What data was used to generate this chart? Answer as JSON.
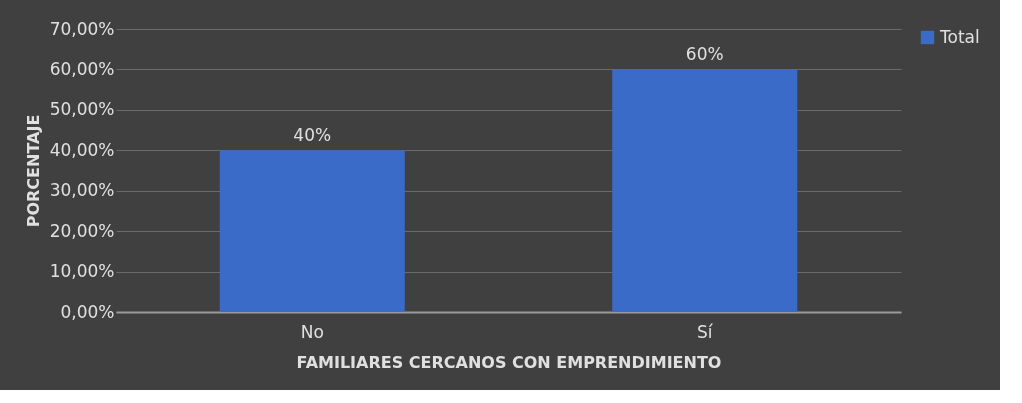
{
  "chart_data": {
    "type": "bar",
    "xlabel": "FAMILIARES CERCANOS CON EMPRENDIMIENTO",
    "ylabel": "PORCENTAJE",
    "categories": [
      "No",
      "Sí"
    ],
    "series": [
      {
        "name": "Total",
        "color": "#3a6bc8",
        "values": [
          40,
          60
        ],
        "value_labels": [
          "40%",
          "60%"
        ]
      }
    ],
    "ylim": [
      0,
      70
    ],
    "yticks": [
      {
        "value": 0,
        "label": "0,00%"
      },
      {
        "value": 10,
        "label": "10,00%"
      },
      {
        "value": 20,
        "label": "20,00%"
      },
      {
        "value": 30,
        "label": "30,00%"
      },
      {
        "value": 40,
        "label": "40,00%"
      },
      {
        "value": 50,
        "label": "50,00%"
      },
      {
        "value": 60,
        "label": "60,00%"
      },
      {
        "value": 70,
        "label": "70,00%"
      }
    ],
    "grid": "y",
    "legend": "right"
  }
}
